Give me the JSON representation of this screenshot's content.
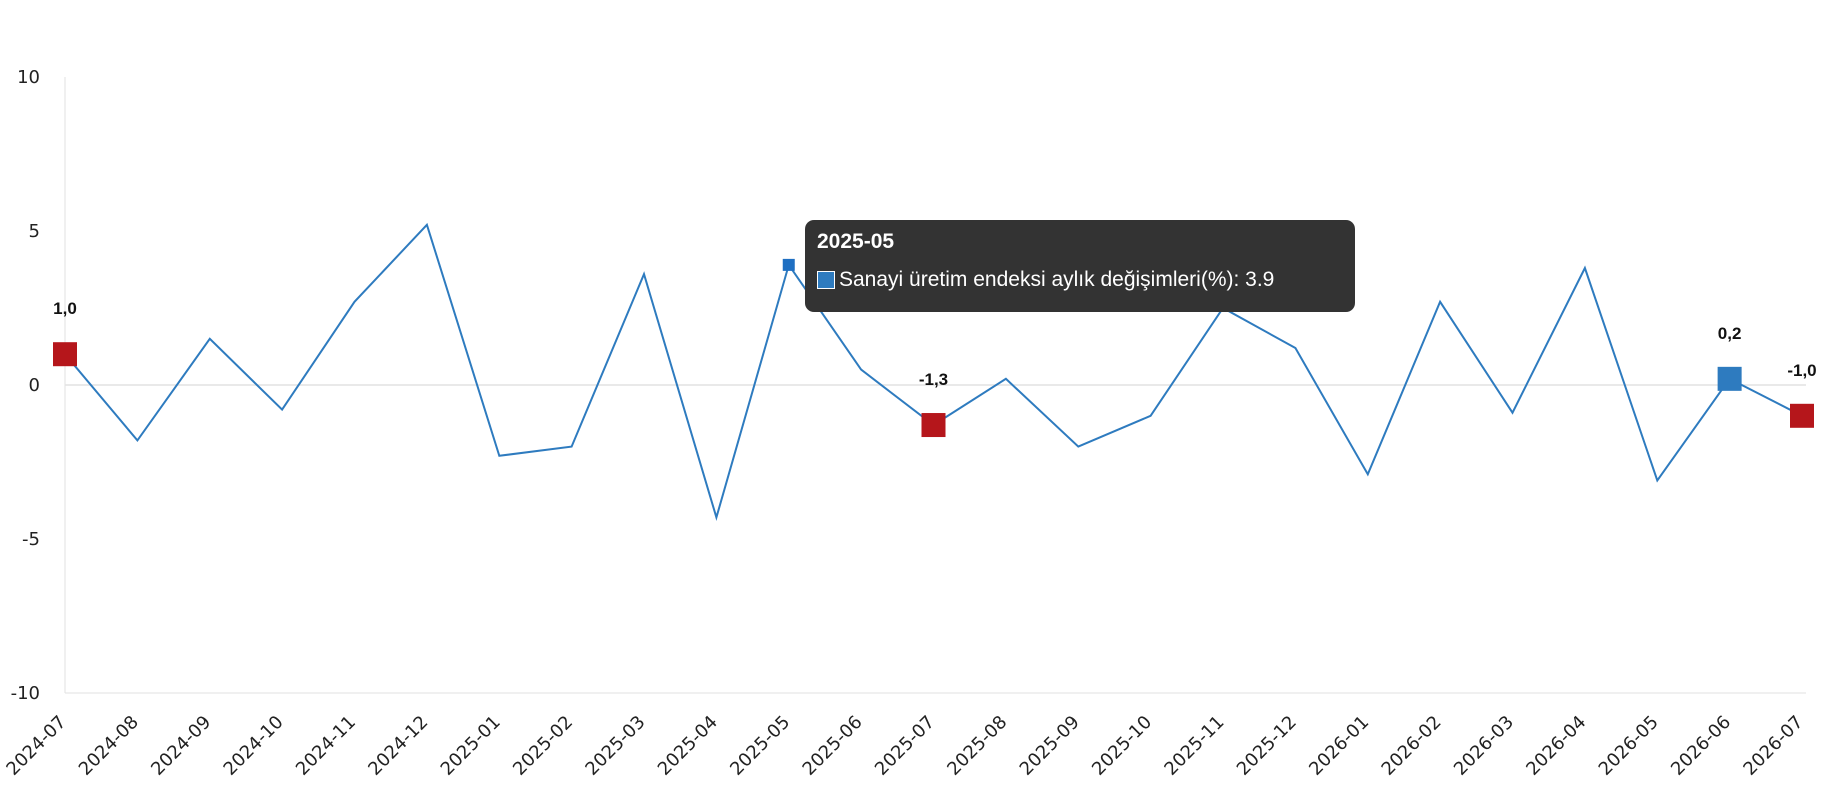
{
  "chart_data": {
    "type": "line",
    "x": [
      "2024-07",
      "2024-08",
      "2024-09",
      "2024-10",
      "2024-11",
      "2024-12",
      "2025-01",
      "2025-02",
      "2025-03",
      "2025-04",
      "2025-05",
      "2025-06",
      "2025-07",
      "2025-08",
      "2025-09",
      "2025-10",
      "2025-11",
      "2025-12",
      "2026-01",
      "2026-02",
      "2026-03",
      "2026-04",
      "2026-05",
      "2026-06",
      "2026-07"
    ],
    "series": [
      {
        "name": "Sanayi üretim endeksi aylık değişimleri(%)",
        "values": [
          1.0,
          -1.8,
          1.5,
          -0.8,
          2.7,
          5.2,
          -2.3,
          -2.0,
          3.6,
          -4.3,
          3.9,
          0.5,
          -1.3,
          0.2,
          -2.0,
          -1.0,
          2.5,
          1.2,
          -2.9,
          2.7,
          -0.9,
          3.8,
          -3.1,
          0.2,
          -1.0
        ],
        "color": "#2e7bbf"
      }
    ],
    "ylim": [
      -10,
      10
    ],
    "y_ticks": [
      10,
      5,
      0,
      -5,
      -10
    ],
    "grid": false,
    "legend": "none",
    "highlighted_points": [
      {
        "x": "2024-07",
        "label": "1,0",
        "color": "#b5161b"
      },
      {
        "x": "2025-07",
        "label": "-1,3",
        "color": "#b5161b"
      },
      {
        "x": "2026-06",
        "label": "0,2",
        "color": "#2e7bbf"
      },
      {
        "x": "2026-07",
        "label": "-1,0",
        "color": "#b5161b"
      }
    ],
    "hovered_point": "2025-05"
  },
  "tooltip": {
    "title": "2025-05",
    "series_name": "Sanayi üretim endeksi aylık değişimleri(%)",
    "value": "3.9",
    "text": "Sanayi üretim endeksi aylık değişimleri(%): 3.9",
    "swatch_color": "#2e7bbf",
    "background": "#333333"
  }
}
